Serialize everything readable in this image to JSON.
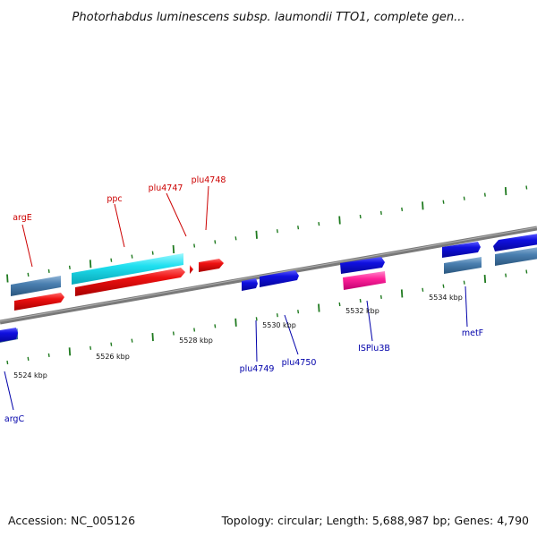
{
  "title": "Photorhabdus luminescens subsp. laumondii TTO1, complete gen...",
  "footer": {
    "accession": "Accession: NC_005126",
    "summary": "Topology: circular; Length: 5,688,987 bp; Genes: 4,790"
  },
  "scale": {
    "unit": "kbp",
    "labels": [
      "5524 kbp",
      "5526 kbp",
      "5528 kbp",
      "5530 kbp",
      "5532 kbp",
      "5534 kbp"
    ]
  },
  "colors": {
    "backbone": "#7a7a7a",
    "tick": "#1f7a1f",
    "forward_gene": "#1010e0",
    "forward_label": "#0000aa",
    "reverse_gene": "#ee1111",
    "reverse_label": "#cc0000",
    "cds_bar": "#4a7fb0",
    "rrna": "#20e0f0",
    "mobile_element": "#ff2299"
  },
  "labels": {
    "forward": [
      "argC",
      "plu4749",
      "plu4750",
      "ISPlu3B",
      "metF"
    ],
    "reverse": [
      "argE",
      "ppc",
      "plu4747",
      "plu4748"
    ]
  }
}
